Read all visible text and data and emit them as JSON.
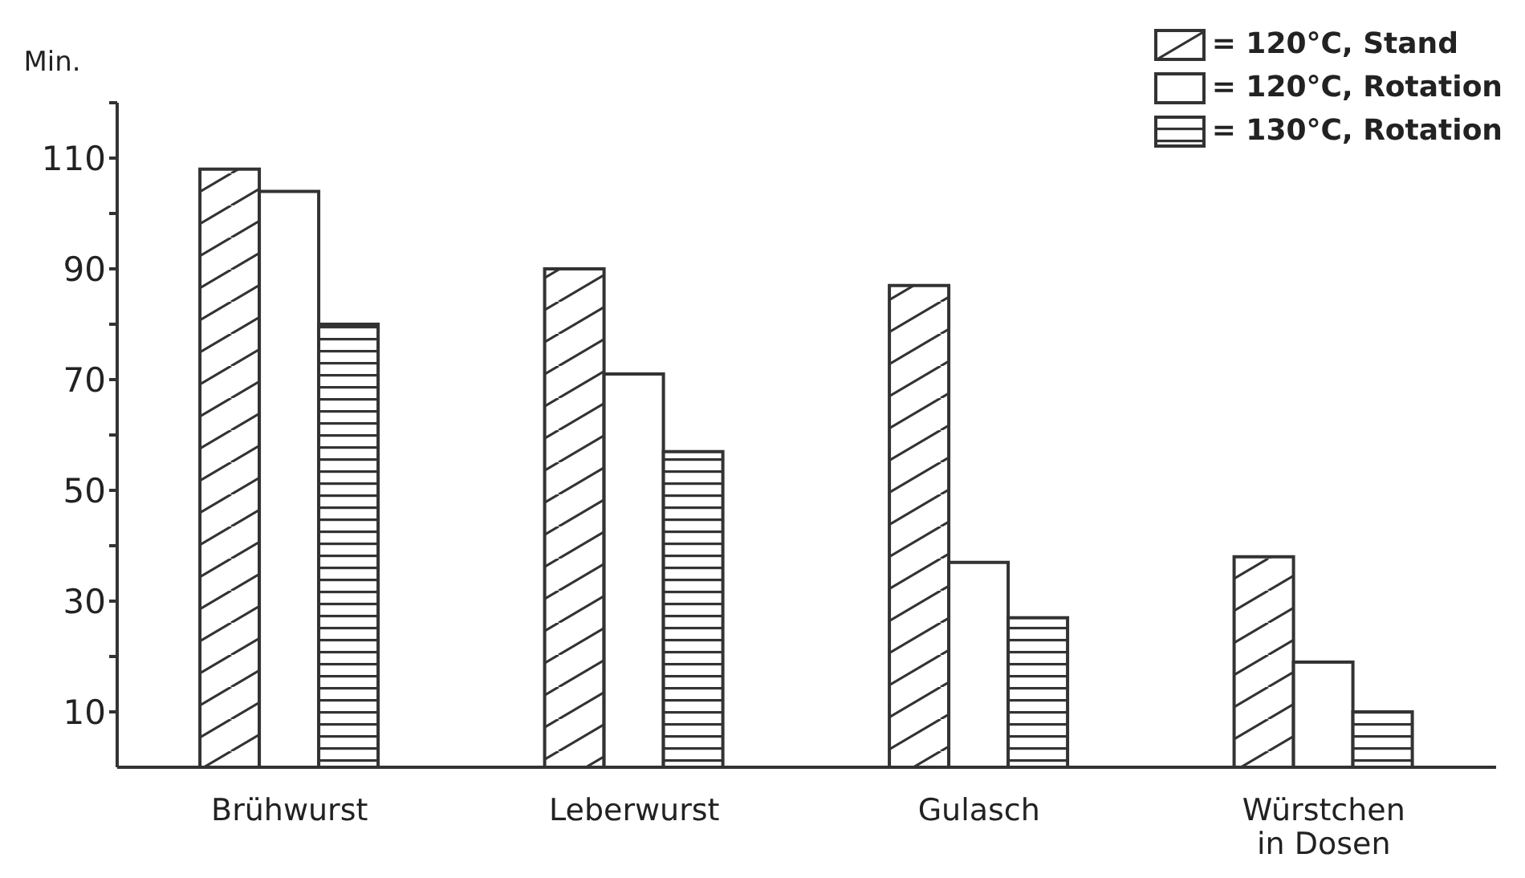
{
  "chart_data": {
    "type": "bar",
    "ylabel": "Min.",
    "categories": [
      "Brühwurst",
      "Leberwurst",
      "Gulasch",
      "Würstchen in Dosen"
    ],
    "series": [
      {
        "name": "= 120°C, Stand",
        "color": "#333333",
        "values": [
          108,
          90,
          87,
          38
        ]
      },
      {
        "name": "= 120°C, Rotation",
        "color": "#333333",
        "values": [
          104,
          71,
          37,
          19
        ]
      },
      {
        "name": "= 130°C, Rotation",
        "color": "#333333",
        "values": [
          80,
          57,
          27,
          10
        ]
      }
    ],
    "ylim": [
      0,
      120
    ],
    "yticks": [
      10,
      {
        "value": 20,
        "label": null
      },
      30,
      {
        "value": 40,
        "label": null
      },
      50,
      {
        "value": 60,
        "label": null
      },
      70,
      {
        "value": 80,
        "label": null
      },
      90,
      {
        "value": 100,
        "label": null
      },
      110,
      {
        "value": 120,
        "label": null
      }
    ],
    "grid": false,
    "legend": "top right"
  }
}
